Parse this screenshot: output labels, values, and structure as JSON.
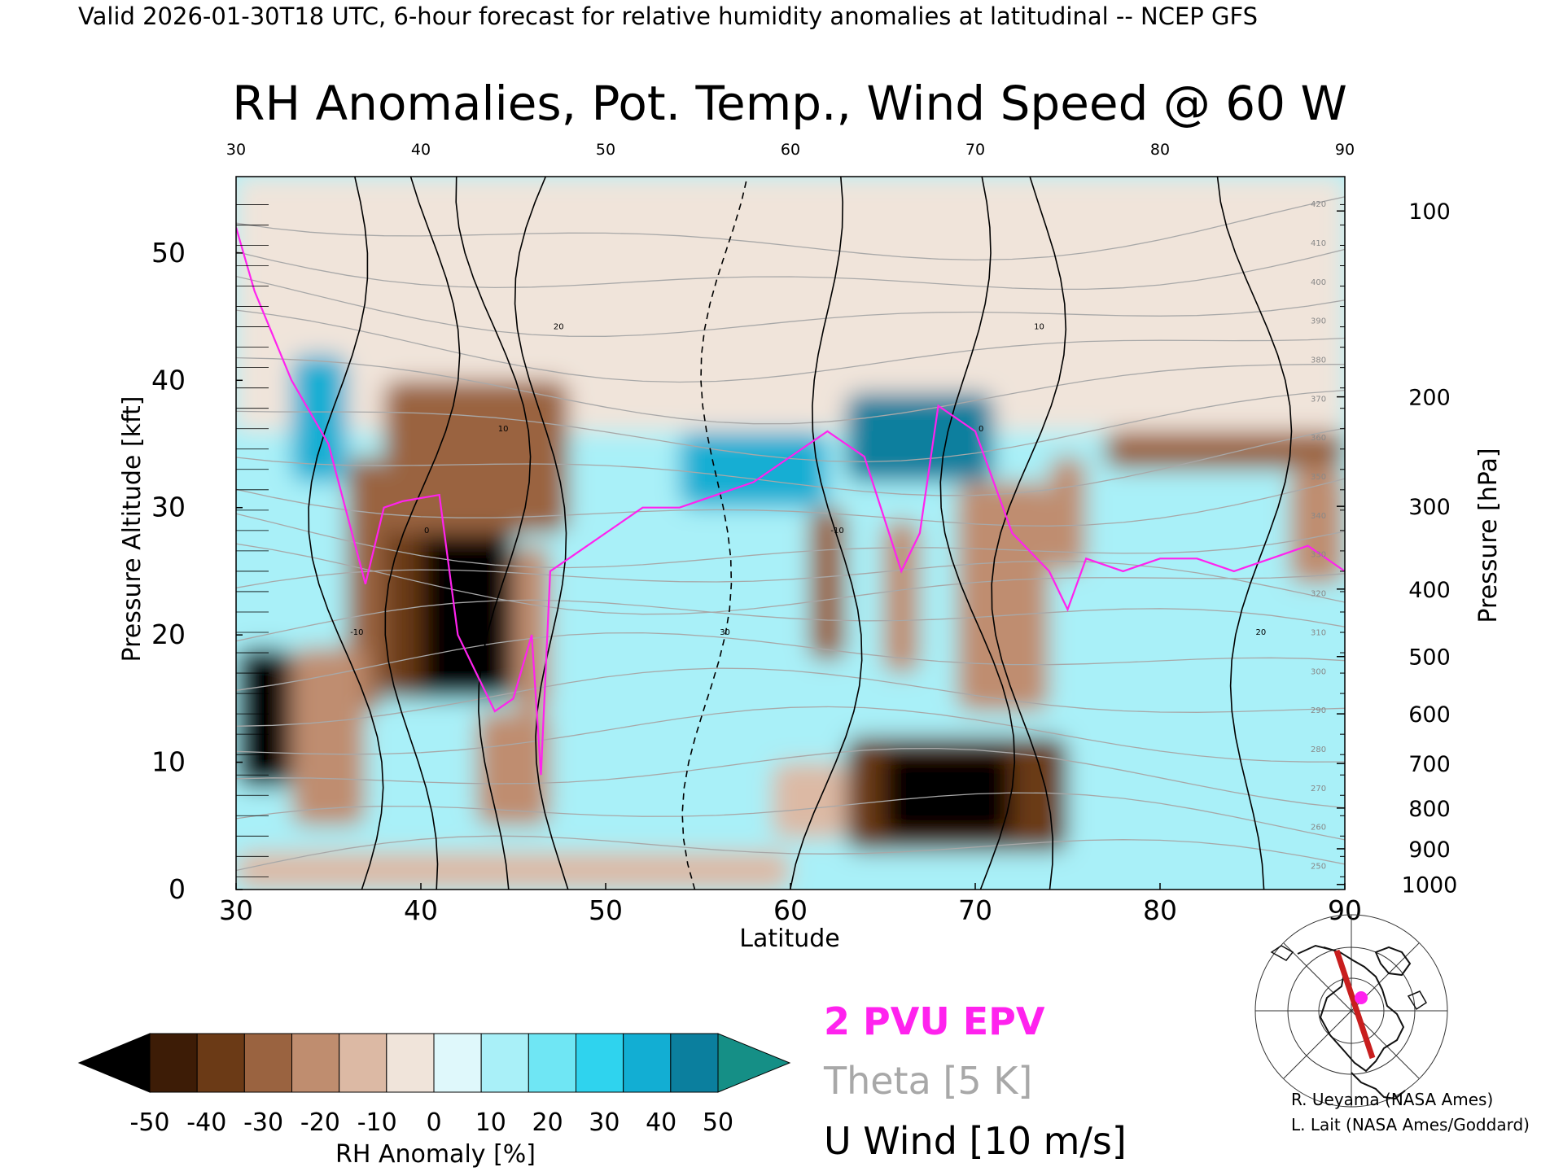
{
  "header": "Valid 2026-01-30T18 UTC, 6-hour forecast for relative humidity anomalies at latitudinal -- NCEP GFS",
  "chart_data": {
    "type": "heatmap",
    "title": "RH Anomalies, Pot. Temp., Wind Speed @ 60 W",
    "xlabel": "Latitude",
    "ylabel_left": "Pressure Altitude [kft]",
    "ylabel_right": "Pressure [hPa]",
    "xlim": [
      30,
      90
    ],
    "ylim": [
      0,
      56
    ],
    "x_ticks": [
      "30",
      "40",
      "50",
      "60",
      "70",
      "80",
      "90"
    ],
    "x_ticks_top": [
      "30",
      "40",
      "50",
      "60",
      "70",
      "80",
      "90"
    ],
    "y_ticks_left": [
      "0",
      "10",
      "20",
      "30",
      "40",
      "50"
    ],
    "y_ticks_right": [
      {
        "label": "100",
        "kft": 53.3
      },
      {
        "label": "200",
        "kft": 38.7
      },
      {
        "label": "300",
        "kft": 30.1
      },
      {
        "label": "400",
        "kft": 23.6
      },
      {
        "label": "500",
        "kft": 18.3
      },
      {
        "label": "600",
        "kft": 13.8
      },
      {
        "label": "700",
        "kft": 9.9
      },
      {
        "label": "800",
        "kft": 6.4
      },
      {
        "label": "900",
        "kft": 3.2
      },
      {
        "label": "1000",
        "kft": 0.4
      }
    ],
    "colorbar": {
      "label": "RH Anomaly [%]",
      "ticks": [
        "-50",
        "-40",
        "-30",
        "-20",
        "-10",
        "0",
        "10",
        "20",
        "30",
        "40",
        "50"
      ],
      "colors": [
        "#000000",
        "#3d1c06",
        "#6b3a16",
        "#9a6340",
        "#bf8d6f",
        "#dcb9a4",
        "#f0e4da",
        "#dff8fb",
        "#a9f0f8",
        "#6fe6f4",
        "#2fd3ee",
        "#12aed3",
        "#0b7f9e",
        "#158f86"
      ]
    },
    "rh_anomaly_regions": [
      {
        "lat": [
          30,
          90
        ],
        "kft": [
          0,
          56
        ],
        "rh": 15
      },
      {
        "lat": [
          30,
          90
        ],
        "kft": [
          36,
          56
        ],
        "rh": -8
      },
      {
        "lat": [
          33,
          36
        ],
        "kft": [
          32,
          42
        ],
        "rh": 35
      },
      {
        "lat": [
          36,
          38
        ],
        "kft": [
          14,
          34
        ],
        "rh": -30
      },
      {
        "lat": [
          38,
          42
        ],
        "kft": [
          15,
          30
        ],
        "rh": -40
      },
      {
        "lat": [
          40,
          45
        ],
        "kft": [
          15,
          32
        ],
        "rh": -55
      },
      {
        "lat": [
          38,
          48
        ],
        "kft": [
          28,
          40
        ],
        "rh": -32
      },
      {
        "lat": [
          30,
          33
        ],
        "kft": [
          8,
          19
        ],
        "rh": -55
      },
      {
        "lat": [
          33,
          37
        ],
        "kft": [
          5,
          19
        ],
        "rh": -18
      },
      {
        "lat": [
          43,
          47
        ],
        "kft": [
          5,
          14
        ],
        "rh": -22
      },
      {
        "lat": [
          45,
          47
        ],
        "kft": [
          14,
          27
        ],
        "rh": -18
      },
      {
        "lat": [
          54,
          62
        ],
        "kft": [
          30,
          36
        ],
        "rh": 40
      },
      {
        "lat": [
          63,
          71
        ],
        "kft": [
          32,
          39
        ],
        "rh": 45
      },
      {
        "lat": [
          61,
          63
        ],
        "kft": [
          18,
          30
        ],
        "rh": -28
      },
      {
        "lat": [
          65,
          67
        ],
        "kft": [
          17,
          29
        ],
        "rh": -25
      },
      {
        "lat": [
          69,
          74
        ],
        "kft": [
          14,
          32
        ],
        "rh": -22
      },
      {
        "lat": [
          63,
          75
        ],
        "kft": [
          3,
          12
        ],
        "rh": -35
      },
      {
        "lat": [
          65,
          72
        ],
        "kft": [
          4,
          11
        ],
        "rh": -55
      },
      {
        "lat": [
          74,
          76
        ],
        "kft": [
          25,
          34
        ],
        "rh": -25
      },
      {
        "lat": [
          77,
          90
        ],
        "kft": [
          33,
          36
        ],
        "rh": -30
      },
      {
        "lat": [
          87,
          90
        ],
        "kft": [
          24,
          33
        ],
        "rh": -20
      },
      {
        "lat": [
          30,
          60
        ],
        "kft": [
          0,
          3
        ],
        "rh": -12
      },
      {
        "lat": [
          59,
          63
        ],
        "kft": [
          4,
          10
        ],
        "rh": -15
      }
    ],
    "series": [
      {
        "name": "2 PVU EPV",
        "x": [
          30,
          31,
          33,
          35,
          37,
          38,
          39,
          41,
          42,
          43,
          44,
          45,
          46,
          46.5,
          47,
          48,
          50,
          52,
          54,
          56,
          58,
          60,
          62,
          63,
          64,
          66,
          67,
          68,
          70,
          72,
          74,
          75,
          76,
          78,
          80,
          82,
          84,
          86,
          88,
          90
        ],
        "y": [
          52,
          47,
          40,
          35,
          24,
          30,
          30.5,
          31,
          20,
          17,
          14,
          15,
          20,
          9,
          25,
          26,
          28,
          30,
          30,
          31,
          32,
          34,
          36,
          35,
          34,
          25,
          28,
          38,
          36,
          28,
          25,
          22,
          26,
          25,
          26,
          26,
          25,
          26,
          27,
          25
        ]
      }
    ],
    "theta_contours_K": [
      250,
      260,
      270,
      280,
      290,
      300,
      310,
      320,
      330,
      340,
      350,
      360,
      370,
      380,
      390,
      400,
      410,
      420
    ],
    "u_wind_contours_ms": [
      -10,
      0,
      10,
      20,
      30
    ],
    "legend": [
      "2 PVU EPV",
      "Theta [5 K]",
      "U Wind [10 m/s]"
    ]
  },
  "credits": [
    "R. Ueyama (NASA Ames)",
    "L. Lait (NASA Ames/Goddard)"
  ],
  "colors": {
    "epv": "#ff22ee",
    "theta": "#a8a8a8",
    "wind": "#000000",
    "route": "#c81e1e",
    "marker": "#ff22ee"
  },
  "icons": {
    "locator_map": "north-america-polar-map-icon"
  }
}
